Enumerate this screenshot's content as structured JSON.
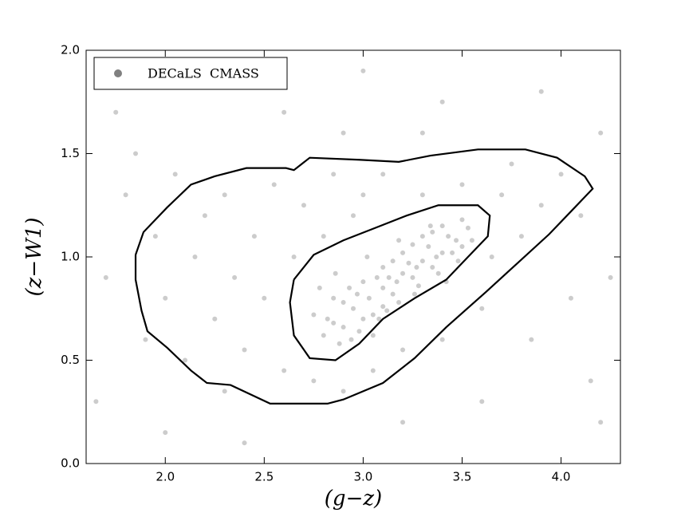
{
  "chart_data": {
    "type": "scatter",
    "xlabel": "(g−z)",
    "ylabel": "(z−W1)",
    "xlim": [
      1.6,
      4.3
    ],
    "ylim": [
      0,
      2.0
    ],
    "xticks": [
      {
        "value": 2,
        "label": "2.0"
      },
      {
        "value": 2.5,
        "label": "2.5"
      },
      {
        "value": 3,
        "label": "3.0"
      },
      {
        "value": 3.5,
        "label": "3.5"
      },
      {
        "value": 4,
        "label": "4.0"
      }
    ],
    "yticks": [
      {
        "value": 0,
        "label": "0.0"
      },
      {
        "value": 0.5,
        "label": "0.5"
      },
      {
        "value": 1,
        "label": "1.0"
      },
      {
        "value": 1.5,
        "label": "1.5"
      },
      {
        "value": 2,
        "label": "2.0"
      }
    ],
    "legend": "upper left",
    "series": [
      {
        "name": "DECaLS  CMASS",
        "color": "#808080",
        "x": [
          2.75,
          2.8,
          2.85,
          2.9,
          2.95,
          3.0,
          3.05,
          3.1,
          3.15,
          3.2,
          3.25,
          3.3,
          3.35,
          3.4,
          3.45,
          3.5,
          3.55,
          2.82,
          2.88,
          2.93,
          2.98,
          3.03,
          3.08,
          3.13,
          3.18,
          3.23,
          3.28,
          3.33,
          3.38,
          3.43,
          3.48,
          3.53,
          2.78,
          2.86,
          2.94,
          3.02,
          3.1,
          3.18,
          3.26,
          3.34,
          3.42,
          3.5,
          2.9,
          3.0,
          3.1,
          3.2,
          3.3,
          3.4,
          3.05,
          3.15,
          3.25,
          3.35,
          2.97,
          3.07,
          3.17,
          3.27,
          3.37,
          3.47,
          2.85,
          3.12,
          1.7,
          1.8,
          1.9,
          1.95,
          2.0,
          2.05,
          2.1,
          2.15,
          2.2,
          2.25,
          2.3,
          2.35,
          2.4,
          2.45,
          2.5,
          2.55,
          2.6,
          2.65,
          2.7,
          2.75,
          2.8,
          2.85,
          2.9,
          2.95,
          3.0,
          3.05,
          3.1,
          3.2,
          3.3,
          3.4,
          3.5,
          3.6,
          3.7,
          3.8,
          3.9,
          4.0,
          4.1,
          4.2,
          4.25,
          3.75,
          3.65,
          3.85,
          1.65,
          1.75,
          2.2,
          2.6,
          3.0,
          3.4,
          3.9,
          4.15,
          2.0,
          2.4,
          3.2,
          3.6,
          4.2,
          2.3,
          1.85,
          2.9,
          3.3,
          4.05
        ],
        "values": [
          0.72,
          0.62,
          0.8,
          0.66,
          0.75,
          0.88,
          0.72,
          0.95,
          0.82,
          1.02,
          0.9,
          1.1,
          0.95,
          1.15,
          1.02,
          1.18,
          1.08,
          0.7,
          0.58,
          0.85,
          0.64,
          0.8,
          0.7,
          0.9,
          0.78,
          0.97,
          0.86,
          1.05,
          0.92,
          1.1,
          0.98,
          1.14,
          0.85,
          0.92,
          0.6,
          1.0,
          0.76,
          1.08,
          0.82,
          1.15,
          0.88,
          1.05,
          0.78,
          0.7,
          0.85,
          0.92,
          0.98,
          1.02,
          0.62,
          0.98,
          1.06,
          1.12,
          0.82,
          0.9,
          0.88,
          0.95,
          1.0,
          1.08,
          0.68,
          0.74,
          0.9,
          1.3,
          0.6,
          1.1,
          0.8,
          1.4,
          0.5,
          1.0,
          1.2,
          0.7,
          1.3,
          0.9,
          0.55,
          1.1,
          0.8,
          1.35,
          0.45,
          1.0,
          1.25,
          0.4,
          1.1,
          1.4,
          0.35,
          1.2,
          1.3,
          0.45,
          1.4,
          0.55,
          1.3,
          0.6,
          1.35,
          0.75,
          1.3,
          1.1,
          1.25,
          1.4,
          1.2,
          1.6,
          0.9,
          1.45,
          1.0,
          0.6,
          0.3,
          1.7,
          1.85,
          1.7,
          1.9,
          1.75,
          1.8,
          0.4,
          0.15,
          0.1,
          0.2,
          0.3,
          0.2,
          0.35,
          1.5,
          1.6,
          1.6,
          0.8
        ]
      }
    ],
    "contours": [
      {
        "color": "#000000",
        "x": [
          1.85,
          1.89,
          2.01,
          2.13,
          2.25,
          2.41,
          2.61,
          2.65,
          2.73,
          2.98,
          3.18,
          3.34,
          3.58,
          3.82,
          3.98,
          4.12,
          4.16,
          4.06,
          3.94,
          3.78,
          3.62,
          3.42,
          3.26,
          3.1,
          2.9,
          2.82,
          2.53,
          2.33,
          2.21,
          2.13,
          2.01,
          1.91,
          1.88,
          1.85,
          1.85
        ],
        "values": [
          1.01,
          1.12,
          1.24,
          1.35,
          1.39,
          1.43,
          1.43,
          1.42,
          1.48,
          1.47,
          1.46,
          1.49,
          1.52,
          1.52,
          1.48,
          1.39,
          1.33,
          1.23,
          1.11,
          0.97,
          0.83,
          0.66,
          0.51,
          0.39,
          0.31,
          0.29,
          0.29,
          0.38,
          0.39,
          0.45,
          0.56,
          0.64,
          0.74,
          0.89,
          1.01
        ]
      },
      {
        "color": "#000000",
        "x": [
          2.65,
          2.75,
          2.9,
          3.06,
          3.22,
          3.38,
          3.58,
          3.64,
          3.63,
          3.54,
          3.42,
          3.26,
          3.1,
          2.98,
          2.86,
          2.73,
          2.65,
          2.63,
          2.65
        ],
        "values": [
          0.89,
          1.01,
          1.08,
          1.14,
          1.2,
          1.25,
          1.25,
          1.2,
          1.1,
          1.01,
          0.89,
          0.8,
          0.7,
          0.58,
          0.5,
          0.51,
          0.62,
          0.78,
          0.89
        ]
      }
    ]
  }
}
